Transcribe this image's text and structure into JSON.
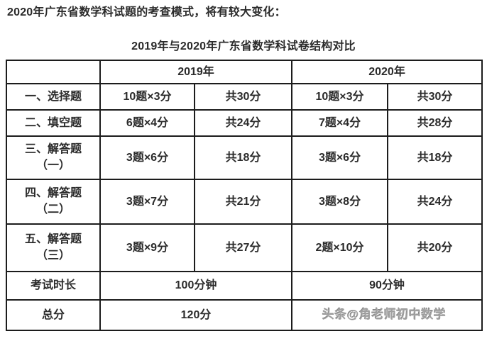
{
  "colors": {
    "ink": "#2b2b2b",
    "red": "#d2261a",
    "line": "#1c1c1c",
    "wm": "#a0a0a0"
  },
  "intro_text": "2020年广东省数学科试题的考查模式，将有较大变化：",
  "table_title": "2019年与2020年广东省数学科试卷结构对比",
  "table": {
    "year_headers": [
      "2019年",
      "2020年"
    ],
    "rows": [
      {
        "label_lines": [
          "一、选择题"
        ],
        "cells": [
          "10题×3分",
          "共30分",
          "10题×3分",
          "共30分"
        ]
      },
      {
        "label_lines": [
          "二、填空题"
        ],
        "cells": [
          "6题×4分",
          "共24分",
          "7题×4分",
          "共28分"
        ]
      },
      {
        "label_lines": [
          "三、解答题",
          "（一）"
        ],
        "cells": [
          "3题×6分",
          "共18分",
          "3题×6分",
          "共18分"
        ]
      },
      {
        "label_lines": [
          "四、解答题",
          "（二）"
        ],
        "cells": [
          "3题×7分",
          "共21分",
          "3题×8分",
          "共24分"
        ]
      },
      {
        "label_lines": [
          "五、解答题",
          "（三）"
        ],
        "cells": [
          "3题×9分",
          "共27分",
          "2题×10分",
          "共20分"
        ]
      }
    ],
    "duration_row": {
      "label": "考试时长",
      "y2019": "100分钟",
      "y2020": "90分钟"
    },
    "total_row": {
      "label": "总分",
      "y2019": "120分",
      "y2020": ""
    }
  },
  "watermark_text": "头条@角老师初中数学"
}
